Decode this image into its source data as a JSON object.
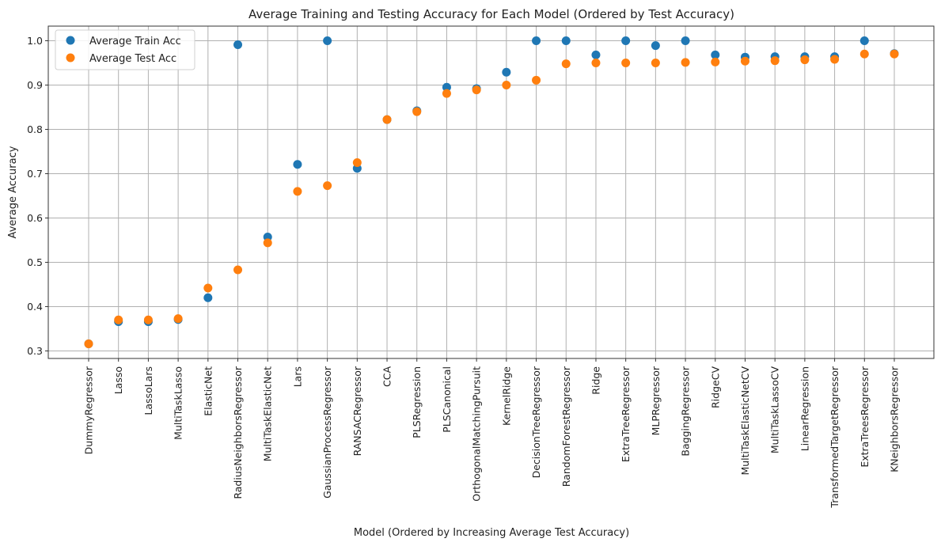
{
  "chart_data": {
    "type": "scatter",
    "title": "Average Training and Testing Accuracy for Each Model (Ordered by Test Accuracy)",
    "xlabel": "Model (Ordered by Increasing Average Test Accuracy)",
    "ylabel": "Average Accuracy",
    "ylim": [
      0.283,
      1.033
    ],
    "yticks": [
      "0.3",
      "0.4",
      "0.5",
      "0.6",
      "0.7",
      "0.8",
      "0.9",
      "1.0"
    ],
    "grid": true,
    "legend_position": "top-left",
    "categories": [
      "DummyRegressor",
      "Lasso",
      "LassoLars",
      "MultiTaskLasso",
      "ElasticNet",
      "RadiusNeighborsRegressor",
      "MultiTaskElasticNet",
      "Lars",
      "GaussianProcessRegressor",
      "RANSACRegressor",
      "CCA",
      "PLSRegression",
      "PLSCanonical",
      "OrthogonalMatchingPursuit",
      "KernelRidge",
      "DecisionTreeRegressor",
      "RandomForestRegressor",
      "Ridge",
      "ExtraTreeRegressor",
      "MLPRegressor",
      "BaggingRegressor",
      "RidgeCV",
      "MultiTaskElasticNetCV",
      "MultiTaskLassoCV",
      "LinearRegression",
      "TransformedTargetRegressor",
      "ExtraTreesRegressor",
      "KNeighborsRegressor"
    ],
    "series": [
      {
        "name": "Average Train Acc",
        "color": "#1f77b4",
        "values": [
          0.316,
          0.366,
          0.366,
          0.371,
          0.42,
          0.991,
          0.557,
          0.721,
          1.0,
          0.712,
          0.822,
          0.842,
          0.895,
          0.892,
          0.929,
          1.0,
          1.0,
          0.968,
          1.0,
          0.989,
          1.0,
          0.968,
          0.963,
          0.964,
          0.964,
          0.964,
          1.0,
          0.971
        ]
      },
      {
        "name": "Average Test Acc",
        "color": "#ff7f0e",
        "values": [
          0.316,
          0.37,
          0.37,
          0.373,
          0.442,
          0.483,
          0.544,
          0.66,
          0.673,
          0.725,
          0.822,
          0.84,
          0.881,
          0.889,
          0.9,
          0.911,
          0.948,
          0.95,
          0.95,
          0.95,
          0.951,
          0.952,
          0.954,
          0.955,
          0.957,
          0.958,
          0.97,
          0.97
        ]
      }
    ]
  }
}
